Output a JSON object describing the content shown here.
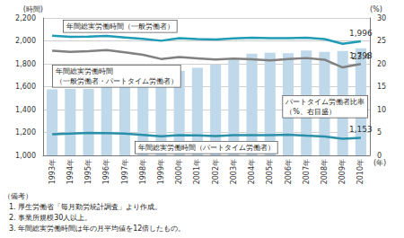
{
  "chart_data": {
    "type": "bar",
    "categories": [
      "1993年",
      "1994年",
      "1995年",
      "1996年",
      "1997年",
      "1998年",
      "1999年",
      "2000年",
      "2001年",
      "2002年",
      "2003年",
      "2004年",
      "2005年",
      "2006年",
      "2007年",
      "2008年",
      "2009年",
      "2010年"
    ],
    "series": [
      {
        "name": "パートタイム労働者比率\n（%、右目盛）",
        "type": "bar",
        "axis": "y2",
        "color": "#bfd9ea",
        "values": [
          14.4,
          14.5,
          14.5,
          14.9,
          15.6,
          16.3,
          17.4,
          18.5,
          19.1,
          19.8,
          20.8,
          22.2,
          22.4,
          22.3,
          22.9,
          22.6,
          22.8,
          23.4
        ],
        "value_labels": [
          null,
          null,
          null,
          null,
          null,
          null,
          null,
          null,
          null,
          null,
          null,
          null,
          null,
          null,
          null,
          null,
          null,
          "23.4"
        ]
      },
      {
        "name": "年間総実労働時間（一般労働者）",
        "type": "line",
        "color": "#1f9bb5",
        "values": [
          2045,
          2036,
          2038,
          2043,
          2030,
          2017,
          2001,
          2024,
          2016,
          2011,
          2022,
          2028,
          2023,
          2024,
          2028,
          2016,
          1975,
          1996
        ],
        "value_labels": [
          null,
          null,
          null,
          null,
          null,
          null,
          null,
          null,
          null,
          null,
          null,
          null,
          null,
          null,
          null,
          null,
          null,
          "1,996"
        ]
      },
      {
        "name": "年間総実労働時間\n（一般労働者・パートタイム労働者）",
        "type": "line",
        "color": "#808080",
        "values": [
          1913,
          1904,
          1909,
          1919,
          1900,
          1879,
          1842,
          1859,
          1848,
          1837,
          1846,
          1840,
          1829,
          1842,
          1850,
          1836,
          1768,
          1798
        ],
        "value_labels": [
          null,
          null,
          null,
          null,
          null,
          null,
          null,
          null,
          null,
          null,
          null,
          null,
          null,
          null,
          null,
          null,
          null,
          "1,798"
        ]
      },
      {
        "name": "年間総実労働時間（パートタイム労働者）",
        "type": "line",
        "color": "#2a8fa8",
        "values": [
          1184,
          1190,
          1196,
          1195,
          1190,
          1178,
          1166,
          1176,
          1174,
          1169,
          1177,
          1176,
          1176,
          1181,
          1172,
          1164,
          1146,
          1153
        ],
        "value_labels": [
          null,
          null,
          null,
          null,
          null,
          null,
          null,
          null,
          null,
          null,
          null,
          null,
          null,
          null,
          null,
          null,
          null,
          "1,153"
        ]
      }
    ],
    "y_label": "(時間)",
    "y2_label": "(%)",
    "x_label": "(年)",
    "ylim": [
      1000,
      2200
    ],
    "yticks": [
      1000,
      1200,
      1400,
      1600,
      1800,
      2000,
      2200
    ],
    "y2lim": [
      0,
      30
    ],
    "y2ticks": [
      0,
      5,
      10,
      15,
      20,
      25,
      30
    ],
    "grid": true,
    "notes": [
      "（備考）",
      "1. 厚生労働省「毎月勤労統計調査」より作成。",
      "2. 事業所規模30人以上。",
      "3. 年間総実労働時間は年の月平均値を12倍したもの。"
    ]
  }
}
